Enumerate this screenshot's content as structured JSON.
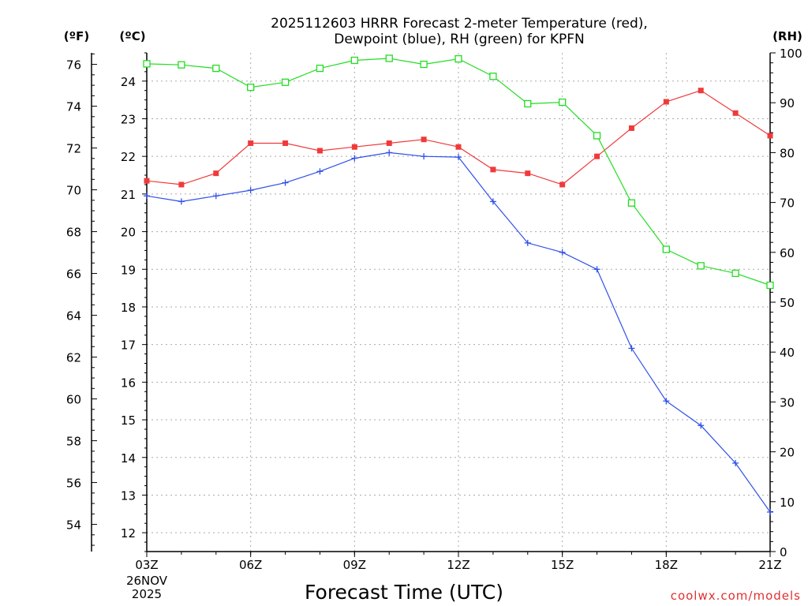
{
  "chart_data": {
    "type": "line",
    "title_line1": "2025112603 HRRR Forecast 2-meter Temperature (red),",
    "title_line2": "Dewpoint (blue), RH (green) for KPFN",
    "xlabel": "Forecast Time (UTC)",
    "x_ticks": [
      "03Z",
      "06Z",
      "09Z",
      "12Z",
      "15Z",
      "18Z",
      "21Z"
    ],
    "date_label_line1": "26NOV",
    "date_label_line2": "2025",
    "credit": "coolwx.com/models",
    "units": {
      "fahrenheit": "(ºF)",
      "celsius": "(ºC)",
      "rh": "(RH)"
    },
    "fahrenheit_ticks": [
      54,
      56,
      58,
      60,
      62,
      64,
      66,
      68,
      70,
      72,
      74,
      76
    ],
    "celsius_ticks": [
      12,
      13,
      14,
      15,
      16,
      17,
      18,
      19,
      20,
      21,
      22,
      23,
      24
    ],
    "rh_ticks": [
      0,
      10,
      20,
      30,
      40,
      50,
      60,
      70,
      80,
      90,
      100
    ],
    "x_hours_range": [
      3,
      21
    ],
    "celsius_range": [
      11.5,
      24.75
    ],
    "rh_range": [
      0,
      100
    ],
    "fahrenheit_c_conversion": "C = (F - 32) * 5 / 9",
    "x_hours": [
      3,
      4,
      5,
      6,
      7,
      8,
      9,
      10,
      11,
      12,
      13,
      14,
      15,
      16,
      17,
      18,
      19,
      20,
      21
    ],
    "series": [
      {
        "name": "2-meter Temperature",
        "unit": "C",
        "color": "#f03a3a",
        "marker": "filled-square",
        "values": [
          21.35,
          21.25,
          21.55,
          22.35,
          22.35,
          22.15,
          22.25,
          22.35,
          22.45,
          22.25,
          21.65,
          21.55,
          21.25,
          22.0,
          22.75,
          23.45,
          23.75,
          23.15,
          22.55
        ]
      },
      {
        "name": "Dewpoint",
        "unit": "C",
        "color": "#3050e8",
        "marker": "plus",
        "values": [
          20.95,
          20.8,
          20.95,
          21.1,
          21.3,
          21.6,
          21.95,
          22.1,
          22.0,
          21.98,
          20.8,
          19.7,
          19.45,
          19.0,
          16.9,
          15.5,
          14.85,
          13.85,
          12.55
        ]
      },
      {
        "name": "RH",
        "unit": "%",
        "color": "#22dd22",
        "marker": "open-square",
        "values": [
          97.8,
          97.6,
          96.9,
          93.1,
          94.1,
          96.9,
          98.5,
          98.9,
          97.7,
          98.8,
          95.3,
          89.8,
          90.1,
          83.4,
          69.9,
          60.6,
          57.3,
          55.8,
          53.4
        ]
      }
    ]
  }
}
